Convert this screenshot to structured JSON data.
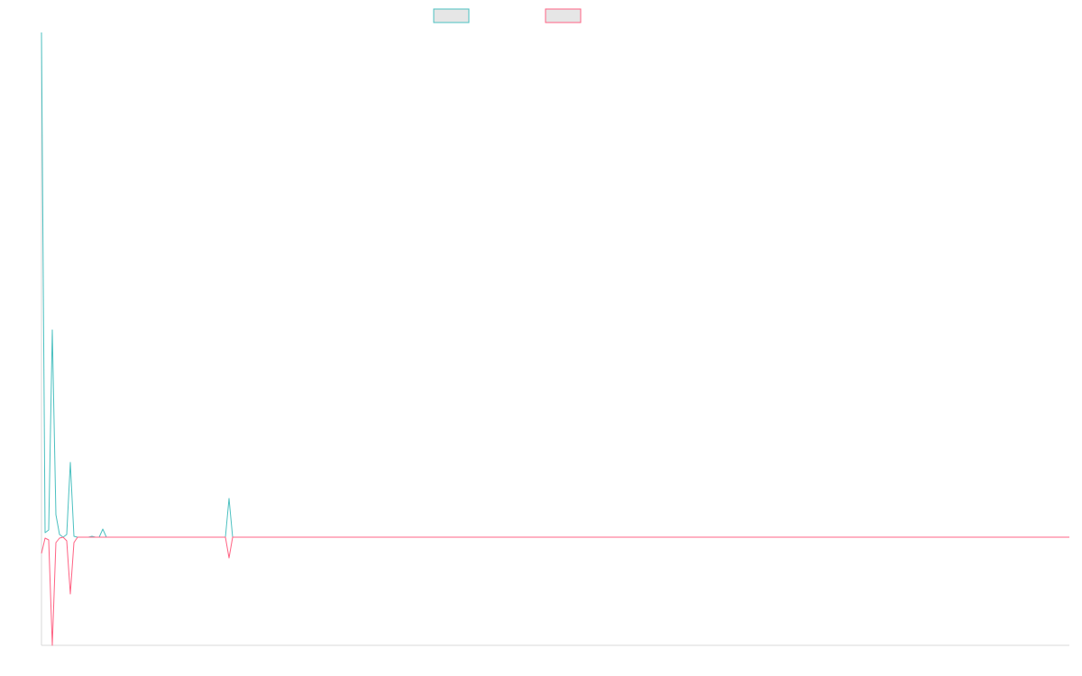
{
  "chart_data": {
    "type": "line",
    "title": "",
    "xlabel": "",
    "ylabel": "",
    "grid": false,
    "legend_position": "top-center",
    "colors": {
      "series_a": "#4bc0c0",
      "series_b": "#ff6384",
      "axis": "#d8d8d8",
      "legend_fill": "#e6e6e6"
    },
    "xlim": [
      0,
      285
    ],
    "ylim": [
      -120,
      560
    ],
    "series": [
      {
        "color": "#4bc0c0",
        "points": [
          [
            0,
            560
          ],
          [
            1,
            5
          ],
          [
            2,
            8
          ],
          [
            3,
            230
          ],
          [
            4,
            25
          ],
          [
            5,
            3
          ],
          [
            6,
            0
          ],
          [
            7,
            3
          ],
          [
            8,
            83
          ],
          [
            9,
            1
          ],
          [
            10,
            0
          ],
          [
            11,
            0
          ],
          [
            12,
            0
          ],
          [
            13,
            0
          ],
          [
            14,
            1
          ],
          [
            15,
            0
          ],
          [
            16,
            0
          ],
          [
            17,
            9
          ],
          [
            18,
            0
          ],
          [
            19,
            0
          ],
          [
            50,
            0
          ],
          [
            51,
            0
          ],
          [
            52,
            43
          ],
          [
            53,
            0
          ],
          [
            54,
            0
          ],
          [
            285,
            0
          ]
        ]
      },
      {
        "color": "#ff6384",
        "points": [
          [
            0,
            -18
          ],
          [
            1,
            -1
          ],
          [
            2,
            -3
          ],
          [
            3,
            -120
          ],
          [
            4,
            -6
          ],
          [
            5,
            -1
          ],
          [
            6,
            0
          ],
          [
            7,
            -4
          ],
          [
            8,
            -63
          ],
          [
            9,
            -6
          ],
          [
            10,
            0
          ],
          [
            11,
            0
          ],
          [
            12,
            0
          ],
          [
            13,
            0
          ],
          [
            14,
            0
          ],
          [
            15,
            0
          ],
          [
            16,
            0
          ],
          [
            17,
            0
          ],
          [
            18,
            0
          ],
          [
            19,
            0
          ],
          [
            50,
            0
          ],
          [
            51,
            0
          ],
          [
            52,
            -23
          ],
          [
            53,
            0
          ],
          [
            54,
            0
          ],
          [
            285,
            0
          ]
        ]
      }
    ]
  }
}
